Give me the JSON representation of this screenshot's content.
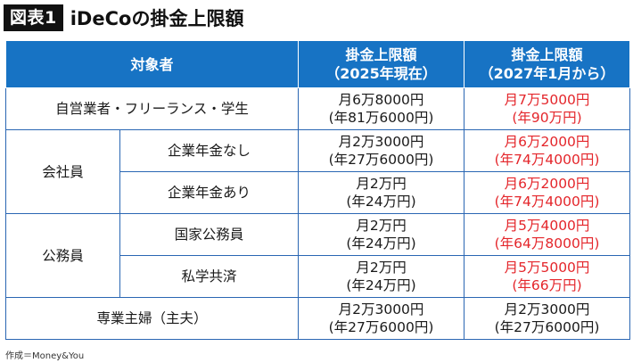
{
  "header": {
    "badge": "図表1",
    "title": "iDeCoの掛金上限額"
  },
  "table": {
    "columns": {
      "category": "対象者",
      "limit_2025": [
        "掛金上限額",
        "（2025年現在）"
      ],
      "limit_2027": [
        "掛金上限額",
        "（2027年1月から）"
      ]
    },
    "rows": {
      "self_employed": {
        "label": "自営業者・フリーランス・学生",
        "current": [
          "月6万8000円",
          "(年81万6000円)"
        ],
        "future": [
          "月7万5000円",
          "(年90万円)"
        ]
      },
      "company_employee": {
        "group": "会社員",
        "no_pension": {
          "label": "企業年金なし",
          "current": [
            "月2万3000円",
            "(年27万6000円)"
          ],
          "future": [
            "月6万2000円",
            "(年74万4000円)"
          ]
        },
        "with_pension": {
          "label": "企業年金あり",
          "current": [
            "月2万円",
            "(年24万円)"
          ],
          "future": [
            "月6万2000円",
            "(年74万4000円)"
          ]
        }
      },
      "civil_servant": {
        "group": "公務員",
        "national": {
          "label": "国家公務員",
          "current": [
            "月2万円",
            "(年24万円)"
          ],
          "future": [
            "月5万4000円",
            "(年64万8000円)"
          ]
        },
        "private_school": {
          "label": "私学共済",
          "current": [
            "月2万円",
            "(年24万円)"
          ],
          "future": [
            "月5万5000円",
            "(年66万円)"
          ]
        }
      },
      "homemaker": {
        "label": "専業主婦（主夫）",
        "current": [
          "月2万3000円",
          "(年27万6000円)"
        ],
        "future": [
          "月2万3000円",
          "(年27万6000円)"
        ]
      }
    }
  },
  "footer": {
    "credit": "作成＝Money&You"
  },
  "colors": {
    "header_bg": "#1773c4",
    "border": "#2a66b3",
    "increase_text": "#e4262b",
    "badge_bg": "#111111"
  }
}
